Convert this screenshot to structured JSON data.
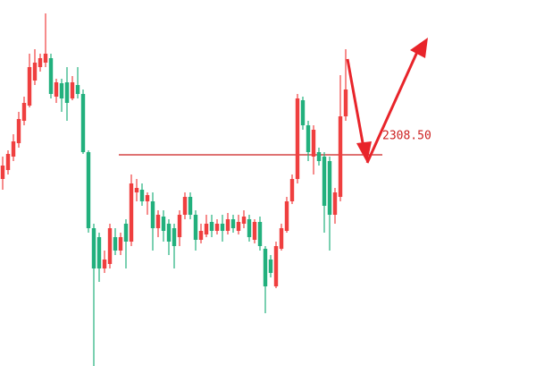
{
  "chart_data": {
    "type": "candlestick",
    "ylim": [
      2284.9,
      2325.8
    ],
    "up_color": "#ef3f3f",
    "down_color": "#22b07d",
    "open": [
      2305.8,
      2306.8,
      2308.3,
      2309.8,
      2312.3,
      2314.0,
      2316.8,
      2318.3,
      2318.8,
      2319.3,
      2315.0,
      2316.5,
      2316.6,
      2314.8,
      2316.3,
      2315.3,
      2308.8,
      2300.3,
      2299.3,
      2295.8,
      2296.3,
      2299.3,
      2297.8,
      2300.8,
      2298.8,
      2304.3,
      2304.6,
      2303.3,
      2303.3,
      2300.3,
      2301.6,
      2300.8,
      2300.3,
      2299.3,
      2301.8,
      2303.8,
      2301.8,
      2299.0,
      2299.6,
      2301.0,
      2300.0,
      2300.8,
      2300.0,
      2301.3,
      2300.0,
      2300.8,
      2301.3,
      2299.0,
      2301.0,
      2298.0,
      2296.8,
      2293.8,
      2298.0,
      2300.0,
      2303.3,
      2305.8,
      2314.6,
      2311.8,
      2308.3,
      2308.8,
      2308.3,
      2307.8,
      2301.8,
      2303.8,
      2312.8
    ],
    "high": [
      2308.3,
      2309.0,
      2310.8,
      2313.3,
      2315.0,
      2319.8,
      2320.3,
      2319.8,
      2324.3,
      2319.8,
      2317.0,
      2317.0,
      2318.3,
      2317.3,
      2318.3,
      2315.8,
      2309.0,
      2300.8,
      2299.8,
      2297.8,
      2300.8,
      2300.3,
      2299.8,
      2301.3,
      2306.3,
      2305.8,
      2305.3,
      2304.3,
      2304.3,
      2302.3,
      2302.3,
      2301.3,
      2300.8,
      2302.3,
      2304.3,
      2304.3,
      2302.3,
      2300.8,
      2301.8,
      2301.8,
      2301.3,
      2301.8,
      2302.0,
      2301.8,
      2301.8,
      2302.3,
      2301.8,
      2301.3,
      2301.6,
      2298.3,
      2297.3,
      2298.8,
      2300.8,
      2303.8,
      2306.3,
      2315.3,
      2315.0,
      2312.3,
      2311.8,
      2309.3,
      2308.8,
      2308.3,
      2304.8,
      2317.4,
      2320.3
    ],
    "low": [
      2304.6,
      2306.3,
      2307.8,
      2309.3,
      2311.8,
      2313.8,
      2316.3,
      2317.8,
      2318.3,
      2314.8,
      2314.3,
      2313.3,
      2312.3,
      2314.6,
      2314.8,
      2308.6,
      2299.8,
      2284.9,
      2294.3,
      2295.3,
      2295.8,
      2297.3,
      2297.3,
      2295.8,
      2298.3,
      2303.3,
      2302.8,
      2301.8,
      2297.8,
      2299.3,
      2298.8,
      2297.3,
      2295.8,
      2298.3,
      2301.3,
      2301.3,
      2297.8,
      2298.6,
      2299.3,
      2299.3,
      2299.6,
      2298.8,
      2299.6,
      2299.8,
      2299.6,
      2300.3,
      2298.8,
      2298.6,
      2297.8,
      2290.8,
      2294.8,
      2293.6,
      2297.8,
      2299.8,
      2303.0,
      2305.3,
      2311.3,
      2307.8,
      2306.3,
      2307.3,
      2299.8,
      2297.8,
      2300.8,
      2303.3,
      2312.3
    ],
    "close": [
      2307.3,
      2308.6,
      2310.0,
      2312.5,
      2314.3,
      2318.3,
      2318.8,
      2319.3,
      2319.8,
      2315.3,
      2316.6,
      2314.8,
      2314.3,
      2316.6,
      2315.3,
      2308.8,
      2300.3,
      2295.8,
      2295.8,
      2296.8,
      2300.3,
      2297.8,
      2299.3,
      2298.8,
      2305.3,
      2304.8,
      2303.3,
      2304.0,
      2300.3,
      2301.8,
      2300.0,
      2298.8,
      2298.3,
      2301.8,
      2303.8,
      2301.8,
      2299.0,
      2300.0,
      2300.8,
      2300.0,
      2300.8,
      2300.0,
      2301.3,
      2300.3,
      2301.0,
      2301.6,
      2299.3,
      2301.0,
      2298.3,
      2293.8,
      2295.3,
      2298.3,
      2300.3,
      2303.3,
      2305.8,
      2314.8,
      2311.8,
      2308.8,
      2311.3,
      2307.8,
      2302.8,
      2301.8,
      2304.3,
      2312.8,
      2315.8
    ],
    "level": {
      "value": 2308.5,
      "label": "2308.50"
    },
    "level_color": "#cc1f1f"
  }
}
